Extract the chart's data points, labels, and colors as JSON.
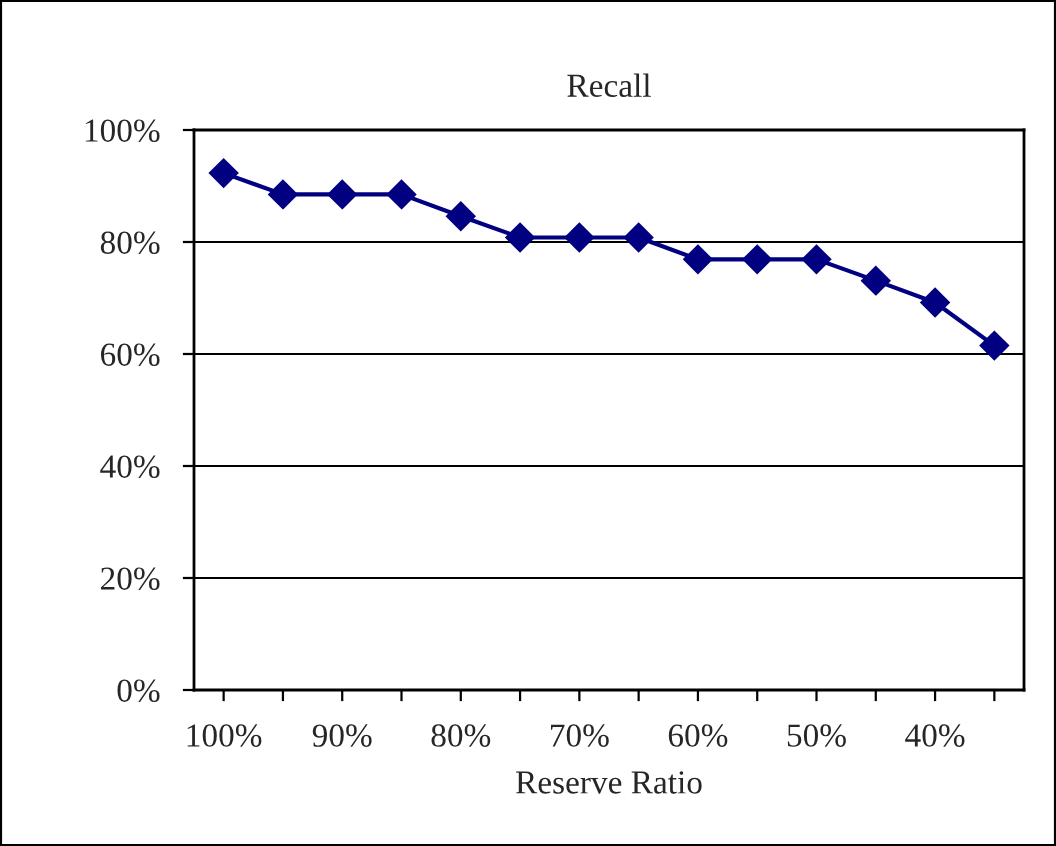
{
  "chart_data": {
    "type": "line",
    "title": "Recall",
    "xlabel": "Reserve Ratio",
    "categories": [
      "100%",
      null,
      "90%",
      null,
      "80%",
      null,
      "70%",
      null,
      "60%",
      null,
      "50%",
      null,
      "40%",
      null
    ],
    "series": [
      {
        "color": "#000080",
        "values": [
          92.3,
          88.5,
          88.5,
          88.5,
          84.6,
          80.8,
          80.8,
          80.8,
          76.9,
          76.9,
          76.9,
          73.1,
          69.2,
          61.5
        ]
      }
    ],
    "ylim": [
      0,
      100
    ],
    "yticks": [
      {
        "value": 0,
        "label": "0%"
      },
      {
        "value": 20,
        "label": "20%"
      },
      {
        "value": 40,
        "label": "40%"
      },
      {
        "value": 60,
        "label": "60%"
      },
      {
        "value": 80,
        "label": "80%"
      },
      {
        "value": 100,
        "label": "100%"
      }
    ],
    "grid": "y",
    "marker": "diamond",
    "line_style": "solid"
  }
}
